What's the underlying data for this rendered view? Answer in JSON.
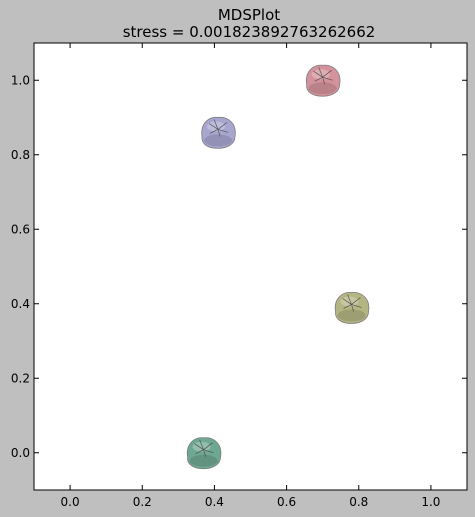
{
  "chart_data": {
    "type": "scatter",
    "title": "MDSPlot",
    "subtitle": "stress = 0.001823892763262662",
    "xlabel": "",
    "ylabel": "",
    "xlim": [
      -0.1,
      1.1
    ],
    "ylim": [
      -0.1,
      1.1
    ],
    "xticks": [
      0.0,
      0.2,
      0.4,
      0.6,
      0.8,
      1.0
    ],
    "yticks": [
      0.0,
      0.2,
      0.4,
      0.6,
      0.8,
      1.0
    ],
    "xtick_labels": [
      "0.0",
      "0.2",
      "0.4",
      "0.6",
      "0.8",
      "1.0"
    ],
    "ytick_labels": [
      "0.0",
      "0.2",
      "0.4",
      "0.6",
      "0.8",
      "1.0"
    ],
    "grid": false,
    "marker": "beanbag-image",
    "points": [
      {
        "x": 0.37,
        "y": 0.0,
        "color": "#6fa892"
      },
      {
        "x": 0.41,
        "y": 0.86,
        "color": "#a8a6cf"
      },
      {
        "x": 0.7,
        "y": 1.0,
        "color": "#d4939c"
      },
      {
        "x": 0.78,
        "y": 0.39,
        "color": "#b3b583"
      }
    ]
  }
}
